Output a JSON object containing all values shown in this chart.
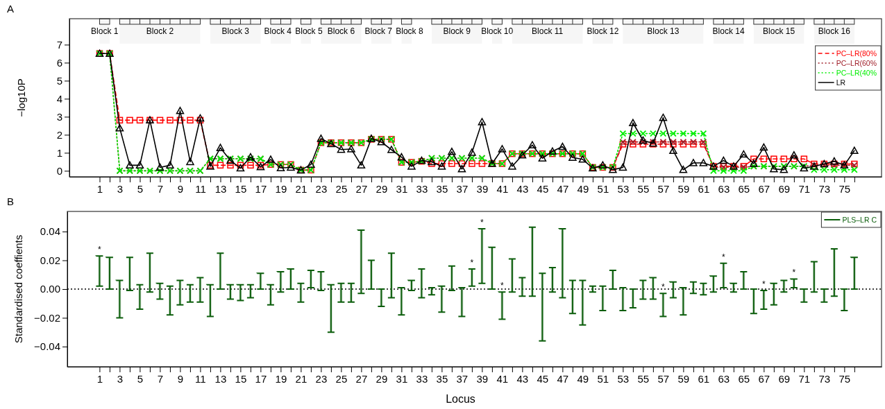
{
  "chart_data": [
    {
      "type": "line",
      "title": "A",
      "ylabel": "−log10P",
      "x": [
        1,
        2,
        3,
        4,
        5,
        6,
        7,
        8,
        9,
        10,
        11,
        12,
        13,
        14,
        15,
        16,
        17,
        18,
        19,
        20,
        21,
        22,
        23,
        24,
        25,
        26,
        27,
        28,
        29,
        30,
        31,
        32,
        33,
        34,
        35,
        36,
        37,
        38,
        39,
        40,
        41,
        42,
        43,
        44,
        45,
        46,
        47,
        48,
        49,
        50,
        51,
        52,
        53,
        54,
        55,
        56,
        57,
        58,
        59,
        60,
        61,
        62,
        63,
        64,
        65,
        66,
        67,
        68,
        69,
        70,
        71,
        72,
        73,
        74,
        75,
        76
      ],
      "xlim": [
        -2,
        78.7
      ],
      "xticks": [
        1,
        {
          "value": 2,
          "label": null
        },
        3,
        {
          "value": 4,
          "label": null
        },
        5,
        {
          "value": 6,
          "label": null
        },
        7,
        {
          "value": 8,
          "label": null
        },
        9,
        {
          "value": 10,
          "label": null
        },
        11,
        {
          "value": 12,
          "label": null
        },
        13,
        {
          "value": 14,
          "label": null
        },
        15,
        {
          "value": 16,
          "label": null
        },
        17,
        {
          "value": 18,
          "label": null
        },
        19,
        {
          "value": 20,
          "label": null
        },
        21,
        {
          "value": 22,
          "label": null
        },
        23,
        {
          "value": 24,
          "label": null
        },
        25,
        {
          "value": 26,
          "label": null
        },
        27,
        {
          "value": 28,
          "label": null
        },
        29,
        {
          "value": 30,
          "label": null
        },
        31,
        {
          "value": 32,
          "label": null
        },
        33,
        {
          "value": 34,
          "label": null
        },
        35,
        {
          "value": 36,
          "label": null
        },
        37,
        {
          "value": 38,
          "label": null
        },
        39,
        {
          "value": 40,
          "label": null
        },
        41,
        {
          "value": 42,
          "label": null
        },
        43,
        {
          "value": 44,
          "label": null
        },
        45,
        {
          "value": 46,
          "label": null
        },
        47,
        {
          "value": 48,
          "label": null
        },
        49,
        {
          "value": 50,
          "label": null
        },
        51,
        {
          "value": 52,
          "label": null
        },
        53,
        {
          "value": 54,
          "label": null
        },
        55,
        {
          "value": 56,
          "label": null
        },
        57,
        {
          "value": 58,
          "label": null
        },
        59,
        {
          "value": 60,
          "label": null
        },
        61,
        {
          "value": 62,
          "label": null
        },
        63,
        {
          "value": 64,
          "label": null
        },
        65,
        {
          "value": 66,
          "label": null
        },
        67,
        {
          "value": 68,
          "label": null
        },
        69,
        {
          "value": 70,
          "label": null
        },
        71,
        {
          "value": 72,
          "label": null
        },
        73,
        {
          "value": 74,
          "label": null
        },
        75,
        {
          "value": 76,
          "label": null
        }
      ],
      "ylim": [
        -0.33,
        8.44
      ],
      "yticks": [
        0,
        1,
        2,
        3,
        4,
        5,
        6,
        7
      ],
      "legend": "top right",
      "series": [
        {
          "name": "PC–LR(80%",
          "color": "#ff0000",
          "marker": "square",
          "line_style": "dashed",
          "values": [
            6.51,
            6.51,
            2.81,
            2.81,
            2.81,
            2.81,
            2.81,
            2.81,
            2.81,
            2.81,
            2.81,
            0.31,
            0.31,
            0.31,
            0.31,
            0.31,
            0.31,
            0.35,
            0.35,
            0.35,
            0.04,
            0.04,
            1.56,
            1.56,
            1.56,
            1.56,
            1.56,
            1.75,
            1.75,
            1.75,
            0.47,
            0.47,
            0.53,
            0.4,
            0.4,
            0.4,
            0.4,
            0.4,
            0.4,
            0.4,
            0.4,
            0.95,
            0.95,
            0.95,
            0.95,
            0.95,
            0.95,
            0.95,
            0.95,
            0.19,
            0.19,
            0.19,
            1.48,
            1.48,
            1.48,
            1.48,
            1.48,
            1.48,
            1.48,
            1.48,
            1.48,
            0.25,
            0.25,
            0.25,
            0.25,
            0.66,
            0.66,
            0.66,
            0.66,
            0.66,
            0.66,
            0.38,
            0.38,
            0.38,
            0.38,
            0.38
          ]
        },
        {
          "name": "PC–LR(60%",
          "color": "#a0202a",
          "marker": "cross",
          "line_style": "dotted",
          "values": [
            6.51,
            6.51,
            0,
            0,
            0,
            0,
            0,
            0,
            0,
            0,
            0,
            0.67,
            0.67,
            0.67,
            0.67,
            0.67,
            0.67,
            0.35,
            0.35,
            0.35,
            0.04,
            0.04,
            1.56,
            1.56,
            1.56,
            1.56,
            1.56,
            1.75,
            1.75,
            1.75,
            0.47,
            0.47,
            0.53,
            0.7,
            0.7,
            0.7,
            0.7,
            0.7,
            0.7,
            0.4,
            0.4,
            0.95,
            0.95,
            0.95,
            0.95,
            0.95,
            0.95,
            0.95,
            0.95,
            0.19,
            0.19,
            0.19,
            1.6,
            1.6,
            1.6,
            1.6,
            1.6,
            1.6,
            1.6,
            1.6,
            1.6,
            0.2,
            0.2,
            0.2,
            0.2,
            0.25,
            0.25,
            0.25,
            0.25,
            0.25,
            0.25,
            0.31,
            0.31,
            0.31,
            0.31,
            0.31
          ]
        },
        {
          "name": "PC–LR(40%",
          "color": "#00ee00",
          "marker": "cross",
          "line_style": "dotted",
          "values": [
            6.51,
            6.51,
            0,
            0,
            0,
            0,
            0,
            0,
            0,
            0,
            0,
            0.67,
            0.67,
            0.67,
            0.67,
            0.67,
            0.67,
            0.35,
            0.35,
            0.35,
            0.04,
            0.04,
            1.56,
            1.56,
            1.56,
            1.56,
            1.56,
            1.75,
            1.75,
            1.75,
            0.47,
            0.47,
            0.53,
            0.7,
            0.7,
            0.7,
            0.7,
            0.7,
            0.7,
            0.4,
            0.4,
            0.95,
            0.95,
            0.95,
            0.95,
            0.95,
            0.95,
            0.95,
            0.95,
            0.19,
            0.19,
            0.19,
            2.07,
            2.07,
            2.07,
            2.07,
            2.07,
            2.07,
            2.07,
            2.07,
            2.07,
            0,
            0,
            0,
            0,
            0.25,
            0.25,
            0.25,
            0.25,
            0.25,
            0.25,
            0.06,
            0.06,
            0.06,
            0.06,
            0.06
          ]
        },
        {
          "name": "LR",
          "color": "#000000",
          "marker": "triangle",
          "line_style": "solid",
          "values": [
            6.51,
            6.51,
            2.37,
            0.31,
            0.31,
            2.81,
            0.19,
            0.31,
            3.33,
            0.5,
            2.92,
            0.25,
            1.28,
            0.57,
            0.15,
            0.76,
            0.22,
            0.63,
            0.16,
            0.19,
            0.04,
            0.35,
            1.79,
            1.5,
            1.18,
            1.21,
            0.31,
            1.79,
            1.6,
            1.17,
            0.76,
            0.25,
            0.57,
            0.5,
            0.25,
            1.06,
            0.1,
            1.02,
            2.71,
            0.4,
            1.21,
            0.25,
            0.87,
            1.43,
            0.7,
            1.08,
            1.34,
            0.74,
            0.64,
            0.15,
            0.31,
            0.06,
            0.19,
            2.66,
            1.69,
            1.53,
            2.95,
            1.12,
            0.06,
            0.44,
            0.44,
            0.25,
            0.57,
            0.25,
            0.92,
            0.4,
            1.3,
            0.1,
            0.06,
            0.87,
            0.15,
            0.25,
            0.38,
            0.53,
            0.31,
            1.12
          ]
        }
      ],
      "bands": [
        {
          "axis": "x",
          "from": 1,
          "to": 2,
          "label": "Block 1"
        },
        {
          "axis": "x",
          "from": 3,
          "to": 11,
          "label": "Block 2"
        },
        {
          "axis": "x",
          "from": 12,
          "to": 17,
          "label": "Block 3"
        },
        {
          "axis": "x",
          "from": 18,
          "to": 20,
          "label": "Block 4"
        },
        {
          "axis": "x",
          "from": 21,
          "to": 22,
          "label": "Block 5"
        },
        {
          "axis": "x",
          "from": 23,
          "to": 27,
          "label": "Block 6"
        },
        {
          "axis": "x",
          "from": 28,
          "to": 30,
          "label": "Block 7"
        },
        {
          "axis": "x",
          "from": 31,
          "to": 32,
          "label": "Block 8"
        },
        {
          "axis": "x",
          "from": 34,
          "to": 39,
          "label": "Block 9"
        },
        {
          "axis": "x",
          "from": 40,
          "to": 41,
          "label": "Block 10"
        },
        {
          "axis": "x",
          "from": 42,
          "to": 49,
          "label": "Block 11"
        },
        {
          "axis": "x",
          "from": 50,
          "to": 52,
          "label": "Block 12"
        },
        {
          "axis": "x",
          "from": 53,
          "to": 61,
          "label": "Block 13"
        },
        {
          "axis": "x",
          "from": 62,
          "to": 65,
          "label": "Block 14"
        },
        {
          "axis": "x",
          "from": 66,
          "to": 71,
          "label": "Block 15"
        },
        {
          "axis": "x",
          "from": 72,
          "to": 76,
          "label": "Block 16"
        }
      ]
    },
    {
      "type": "bar",
      "title": "B",
      "xlabel": "Locus",
      "ylabel": "Standardised coeffients",
      "x": [
        1,
        2,
        3,
        4,
        5,
        6,
        7,
        8,
        9,
        10,
        11,
        12,
        13,
        14,
        15,
        16,
        17,
        18,
        19,
        20,
        21,
        22,
        23,
        24,
        25,
        26,
        27,
        28,
        29,
        30,
        31,
        32,
        33,
        34,
        35,
        36,
        37,
        38,
        39,
        40,
        41,
        42,
        43,
        44,
        45,
        46,
        47,
        48,
        49,
        50,
        51,
        52,
        53,
        54,
        55,
        56,
        57,
        58,
        59,
        60,
        61,
        62,
        63,
        64,
        65,
        66,
        67,
        68,
        69,
        70,
        71,
        72,
        73,
        74,
        75,
        76
      ],
      "xlim": [
        -2.2,
        78.7
      ],
      "xticks": [
        1,
        {
          "value": 2,
          "label": null
        },
        3,
        {
          "value": 4,
          "label": null
        },
        5,
        {
          "value": 6,
          "label": null
        },
        7,
        {
          "value": 8,
          "label": null
        },
        9,
        {
          "value": 10,
          "label": null
        },
        11,
        {
          "value": 12,
          "label": null
        },
        13,
        {
          "value": 14,
          "label": null
        },
        15,
        {
          "value": 16,
          "label": null
        },
        17,
        {
          "value": 18,
          "label": null
        },
        19,
        {
          "value": 20,
          "label": null
        },
        21,
        {
          "value": 22,
          "label": null
        },
        23,
        {
          "value": 24,
          "label": null
        },
        25,
        {
          "value": 26,
          "label": null
        },
        27,
        {
          "value": 28,
          "label": null
        },
        29,
        {
          "value": 30,
          "label": null
        },
        31,
        {
          "value": 32,
          "label": null
        },
        33,
        {
          "value": 34,
          "label": null
        },
        35,
        {
          "value": 36,
          "label": null
        },
        37,
        {
          "value": 38,
          "label": null
        },
        39,
        {
          "value": 40,
          "label": null
        },
        41,
        {
          "value": 42,
          "label": null
        },
        43,
        {
          "value": 44,
          "label": null
        },
        45,
        {
          "value": 46,
          "label": null
        },
        47,
        {
          "value": 48,
          "label": null
        },
        49,
        {
          "value": 50,
          "label": null
        },
        51,
        {
          "value": 52,
          "label": null
        },
        53,
        {
          "value": 54,
          "label": null
        },
        55,
        {
          "value": 56,
          "label": null
        },
        57,
        {
          "value": 58,
          "label": null
        },
        59,
        {
          "value": 60,
          "label": null
        },
        61,
        {
          "value": 62,
          "label": null
        },
        63,
        {
          "value": 64,
          "label": null
        },
        65,
        {
          "value": 66,
          "label": null
        },
        67,
        {
          "value": 68,
          "label": null
        },
        69,
        {
          "value": 70,
          "label": null
        },
        71,
        {
          "value": 72,
          "label": null
        },
        73,
        {
          "value": 74,
          "label": null
        },
        75,
        {
          "value": 76,
          "label": null
        }
      ],
      "ylim": [
        -0.054,
        0.054
      ],
      "yticks": [
        {
          "value": -0.04,
          "label": "−0.04"
        },
        {
          "value": -0.02,
          "label": "−0.02"
        },
        {
          "value": 0,
          "label": "0.00"
        },
        {
          "value": 0.02,
          "label": "0.02"
        },
        {
          "value": 0.04,
          "label": "0.04"
        }
      ],
      "legend": "top right",
      "ref_lines": [
        {
          "axis": "y",
          "value": 0,
          "line_style": "dotted",
          "color": "#000000"
        }
      ],
      "series": [
        {
          "name": "PLS–LR C",
          "color": "#0b5d0b",
          "base": [
            0.002,
            0,
            -0.02,
            -0.001,
            -0.014,
            -0.002,
            -0.007,
            -0.018,
            -0.011,
            -0.009,
            -0.009,
            -0.019,
            0,
            -0.007,
            -0.008,
            -0.006,
            0,
            -0.011,
            -0.002,
            0,
            -0.009,
            0.001,
            -0.001,
            -0.03,
            -0.009,
            -0.009,
            -0.003,
            0,
            -0.012,
            -0.006,
            -0.018,
            -0.001,
            -0.006,
            -0.004,
            -0.016,
            -0.001,
            -0.019,
            0.002,
            0.004,
            0,
            -0.021,
            -0.002,
            -0.005,
            -0.005,
            -0.036,
            -0.002,
            -0.006,
            -0.017,
            -0.025,
            -0.002,
            -0.015,
            0,
            -0.015,
            -0.013,
            -0.007,
            -0.007,
            -0.019,
            -0.006,
            -0.018,
            -0.003,
            -0.004,
            -0.002,
            0.001,
            -0.002,
            0,
            -0.017,
            -0.014,
            -0.011,
            -0.002,
            0.001,
            -0.009,
            -0.002,
            -0.009,
            -0.005,
            -0.015,
            0
          ],
          "values": [
            0.021,
            0.022,
            0.026,
            0.023,
            0.017,
            0.027,
            0.011,
            0.02,
            0.017,
            0.012,
            0.017,
            0.022,
            0.025,
            0.01,
            0.011,
            0.009,
            0.011,
            0.014,
            0.014,
            0.014,
            0.013,
            0.012,
            0.013,
            0.033,
            0.013,
            0.013,
            0.044,
            0.02,
            0.012,
            0.031,
            0.019,
            0.007,
            0.02,
            0.005,
            0.018,
            0.017,
            0.02,
            0.012,
            0.038,
            0.029,
            0.019,
            0.023,
            0.013,
            0.048,
            0.047,
            0.017,
            0.048,
            0.023,
            0.031,
            0.004,
            0.017,
            0.013,
            0.016,
            0.013,
            0.013,
            0.015,
            0.016,
            0.011,
            0.019,
            0.008,
            0.008,
            0.011,
            0.017,
            0.006,
            0.012,
            0.017,
            0.013,
            0.015,
            0.008,
            0.006,
            0.009,
            0.021,
            0.009,
            0.033,
            0.015,
            0.022
          ]
        }
      ],
      "annotations": [
        {
          "text": "*",
          "x": 1,
          "y": 0.023
        },
        {
          "text": "*",
          "x": 38,
          "y": 0.014
        },
        {
          "text": "*",
          "x": 39,
          "y": 0.042
        },
        {
          "text": "*",
          "x": 41,
          "y": -0.002
        },
        {
          "text": "*",
          "x": 57,
          "y": -0.003
        },
        {
          "text": "*",
          "x": 63,
          "y": 0.018
        },
        {
          "text": "*",
          "x": 67,
          "y": -0.001
        },
        {
          "text": "*",
          "x": 70,
          "y": 0.007
        }
      ]
    }
  ]
}
